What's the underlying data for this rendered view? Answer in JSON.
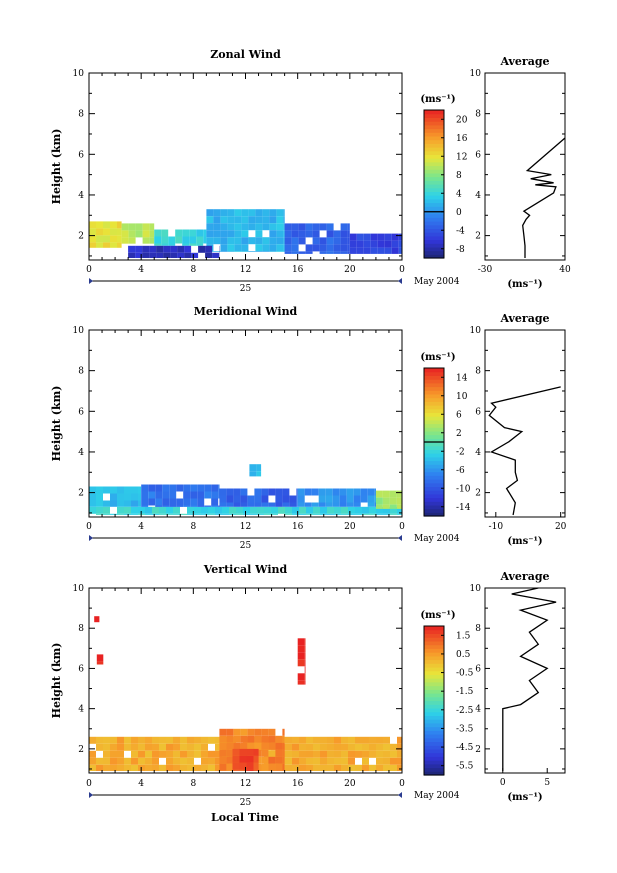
{
  "figure": {
    "xlabel": "Local Time",
    "date_label": "May 2004",
    "day_label": "25",
    "avg_title": "Average"
  },
  "chart_data": [
    {
      "type": "heatmap",
      "title": "Zonal Wind",
      "xlabel": "",
      "ylabel": "Height (km)",
      "x_ticks": [
        "0",
        "4",
        "8",
        "12",
        "16",
        "20",
        "0"
      ],
      "xlim": [
        0,
        24
      ],
      "y_ticks": [
        "2",
        "4",
        "6",
        "8",
        "10"
      ],
      "ylim": [
        0.8,
        10
      ],
      "colorbar": {
        "unit": "(ms⁻¹)",
        "ticks": [
          "20",
          "16",
          "12",
          "8",
          "4",
          "0",
          "-4",
          "-8"
        ],
        "range": [
          -10,
          22
        ],
        "zero_line": 0
      },
      "blocks": [
        {
          "t0": 0,
          "t1": 2.5,
          "h0": 1.4,
          "h1": 2.7,
          "v": 12
        },
        {
          "t0": 2.5,
          "t1": 5,
          "h0": 1.6,
          "h1": 2.6,
          "v": 10
        },
        {
          "t0": 5,
          "t1": 9,
          "h0": 1.5,
          "h1": 2.3,
          "v": 4
        },
        {
          "t0": 9,
          "t1": 15,
          "h0": 1.2,
          "h1": 3.3,
          "v": 2
        },
        {
          "t0": 15,
          "t1": 20,
          "h0": 1.1,
          "h1": 2.6,
          "v": -3
        },
        {
          "t0": 20,
          "t1": 24,
          "h0": 1.1,
          "h1": 2.1,
          "v": -5
        },
        {
          "t0": 3,
          "t1": 10,
          "h0": 0.9,
          "h1": 1.5,
          "v": -7
        }
      ],
      "mean_profile": {
        "title": "Average",
        "xlabel": "(ms⁻¹)",
        "x_ticks": [
          "-30",
          "40"
        ],
        "xlim": [
          -30,
          40
        ],
        "y_ticks": [
          "2",
          "4",
          "6",
          "8",
          "10"
        ],
        "ylim": [
          0.8,
          10
        ],
        "h": [
          0.9,
          1.5,
          2.0,
          2.5,
          2.8,
          3.0,
          3.2,
          4.1,
          4.4,
          4.5,
          4.6,
          4.8,
          5.0,
          5.2,
          6.8
        ],
        "v": [
          5,
          5,
          4,
          3,
          6,
          9,
          4,
          30,
          32,
          14,
          30,
          10,
          28,
          7,
          40
        ]
      }
    },
    {
      "type": "heatmap",
      "title": "Meridional Wind",
      "xlabel": "",
      "ylabel": "Height (km)",
      "x_ticks": [
        "0",
        "4",
        "8",
        "12",
        "16",
        "20",
        "0"
      ],
      "xlim": [
        0,
        24
      ],
      "y_ticks": [
        "2",
        "4",
        "6",
        "8",
        "10"
      ],
      "ylim": [
        0.8,
        10
      ],
      "colorbar": {
        "unit": "(ms⁻¹)",
        "ticks": [
          "14",
          "10",
          "6",
          "2",
          "-2",
          "-6",
          "-10",
          "-14"
        ],
        "range": [
          -16,
          16
        ],
        "zero_line": 0
      },
      "blocks": [
        {
          "t0": 0,
          "t1": 24,
          "h0": 0.9,
          "h1": 1.3,
          "v": -2
        },
        {
          "t0": 0,
          "t1": 4,
          "h0": 1.3,
          "h1": 2.3,
          "v": -4
        },
        {
          "t0": 4,
          "t1": 10,
          "h0": 1.3,
          "h1": 2.4,
          "v": -8
        },
        {
          "t0": 10,
          "t1": 16,
          "h0": 1.3,
          "h1": 2.2,
          "v": -9
        },
        {
          "t0": 16,
          "t1": 22,
          "h0": 1.3,
          "h1": 2.2,
          "v": -6
        },
        {
          "t0": 22,
          "t1": 24,
          "h0": 1.2,
          "h1": 2.1,
          "v": 3
        },
        {
          "t0": 12.3,
          "t1": 13.2,
          "h0": 2.8,
          "h1": 3.4,
          "v": -4
        }
      ],
      "mean_profile": {
        "title": "Average",
        "xlabel": "(ms⁻¹)",
        "x_ticks": [
          "-10",
          "20"
        ],
        "xlim": [
          -15,
          22
        ],
        "y_ticks": [
          "2",
          "4",
          "6",
          "8",
          "10"
        ],
        "ylim": [
          0.8,
          10
        ],
        "h": [
          0.9,
          1.5,
          2.2,
          2.6,
          3.0,
          3.6,
          4.0,
          4.5,
          5.0,
          5.2,
          5.8,
          6.2,
          6.4,
          7.2
        ],
        "v": [
          -2,
          -1,
          -5,
          0,
          -1,
          -1,
          -12,
          -4,
          2,
          -6,
          -13,
          -10,
          -12,
          20
        ]
      }
    },
    {
      "type": "heatmap",
      "title": "Vertical Wind",
      "xlabel": "Local Time",
      "ylabel": "Height (km)",
      "x_ticks": [
        "0",
        "4",
        "8",
        "12",
        "16",
        "20",
        "0"
      ],
      "xlim": [
        0,
        24
      ],
      "y_ticks": [
        "2",
        "4",
        "6",
        "8",
        "10"
      ],
      "ylim": [
        0.8,
        10
      ],
      "colorbar": {
        "unit": "(ms⁻¹)",
        "ticks": [
          "1.5",
          "0.5",
          "-0.5",
          "-1.5",
          "-2.5",
          "-3.5",
          "-4.5",
          "-5.5"
        ],
        "range": [
          -6,
          2
        ],
        "zero_line": null
      },
      "blocks": [
        {
          "t0": 0,
          "t1": 24,
          "h0": 0.9,
          "h1": 2.6,
          "v": 0.3
        },
        {
          "t0": 10,
          "t1": 15,
          "h0": 0.9,
          "h1": 3.0,
          "v": 0.8
        },
        {
          "t0": 11,
          "t1": 13,
          "h0": 0.9,
          "h1": 2.0,
          "v": 1.5
        },
        {
          "t0": 16,
          "t1": 16.6,
          "h0": 5.2,
          "h1": 7.5,
          "v": 2.0
        },
        {
          "t0": 0.6,
          "t1": 1.1,
          "h0": 6.2,
          "h1": 6.7,
          "v": 2.0
        },
        {
          "t0": 0.4,
          "t1": 0.8,
          "h0": 8.3,
          "h1": 8.6,
          "v": 2.0
        }
      ],
      "mean_profile": {
        "title": "Average",
        "xlabel": "(ms⁻¹)",
        "x_ticks": [
          "0",
          "5"
        ],
        "xlim": [
          -2,
          7
        ],
        "y_ticks": [
          "2",
          "4",
          "6",
          "8",
          "10"
        ],
        "ylim": [
          0.8,
          10
        ],
        "h": [
          0.9,
          1.5,
          2.0,
          2.8,
          3.6,
          4.0,
          4.2,
          4.8,
          5.4,
          6.0,
          6.6,
          7.2,
          7.8,
          8.4,
          8.9,
          9.3,
          9.7,
          10.0
        ],
        "v": [
          0,
          0,
          0,
          0,
          0,
          0,
          2,
          4,
          3,
          5,
          2,
          4,
          3,
          5,
          2,
          6,
          1,
          4
        ]
      }
    }
  ]
}
